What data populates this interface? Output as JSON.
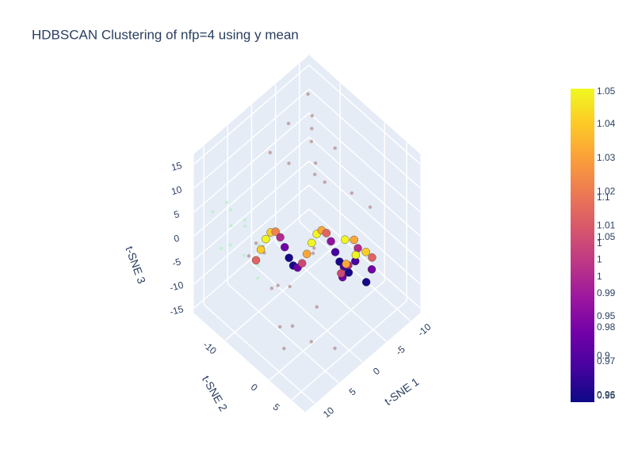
{
  "chart_data": {
    "type": "scatter3d",
    "title": "HDBSCAN Clustering of nfp=4 using y mean",
    "xaxis_title": "t-SNE 1",
    "yaxis_title": "t-SNE 2",
    "zaxis_title": "t-SNE 3",
    "xlim": [
      -12,
      12
    ],
    "ylim": [
      -17,
      8
    ],
    "zlim": [
      -16,
      17
    ],
    "xticks": [
      -10,
      -5,
      0,
      5,
      10
    ],
    "yticks": [
      -10,
      0,
      5
    ],
    "zticks": [
      -15,
      -10,
      -5,
      0,
      5,
      10,
      15
    ],
    "grid": true,
    "colorscale": [
      "#0d0887",
      "#46039f",
      "#7201a8",
      "#9c179e",
      "#bd3786",
      "#d8576b",
      "#ed7953",
      "#fb9f3a",
      "#fdca26",
      "#f0f921"
    ],
    "colorbars": [
      {
        "lim": [
          0.948,
          1.051
        ],
        "ticks": [
          0.95,
          1,
          1.05
        ]
      },
      {
        "lim": [
          0.958,
          1.0505
        ],
        "ticks": [
          0.96,
          0.97,
          0.98,
          0.99,
          1,
          1.01,
          1.02,
          1.03,
          1.04
        ]
      },
      {
        "lim": [
          0.842,
          1.238
        ],
        "ticks": [
          0.9,
          0.95,
          1,
          1.05,
          1.1
        ]
      }
    ],
    "series": [
      {
        "color": "#a87878",
        "opacity": 0.6,
        "size": 2.2,
        "x": [
          -8,
          -6,
          -9,
          -5,
          -7,
          -3,
          -10,
          -4,
          -6,
          -2,
          3,
          5,
          2,
          8,
          6,
          9,
          4,
          -1,
          7,
          10,
          1,
          -7,
          -9,
          0,
          6,
          3,
          -5,
          8,
          2,
          -3
        ],
        "y": [
          -12,
          -10,
          -14,
          -8,
          -11,
          -6,
          -9,
          -13,
          -7,
          -15,
          -5,
          -3,
          -12,
          -2,
          -8,
          0,
          2,
          -4,
          4,
          3,
          -10,
          -2,
          0,
          -16,
          -6,
          5,
          -14,
          -9,
          -1,
          1
        ],
        "z": [
          12,
          10,
          14,
          8,
          11,
          9,
          6,
          13,
          4,
          7,
          -2,
          -5,
          -8,
          -10,
          0,
          -12,
          -6,
          -3,
          -9,
          -4,
          -14,
          5,
          2,
          -11,
          -7,
          -13,
          3,
          -1,
          1,
          -6
        ]
      },
      {
        "color": "#b8f0c8",
        "opacity": 0.7,
        "size": 2.2,
        "x": [
          8,
          9,
          10,
          7,
          8,
          11,
          6,
          9,
          10,
          7,
          5,
          8
        ],
        "y": [
          -14,
          -12,
          -15,
          -11,
          -13,
          -10,
          -12,
          -9,
          -13,
          -8,
          -10,
          -7
        ],
        "z": [
          6,
          7,
          5,
          4,
          2,
          3,
          1,
          0,
          -1,
          -3,
          -2,
          -4
        ]
      },
      {
        "opacity": 1,
        "size": 5,
        "x": [
          11.58,
          10.51,
          9.05,
          7.54,
          6.33,
          5.67,
          5.61,
          6.0,
          6.53,
          6.84,
          6.65,
          5.84,
          4.53,
          3.0,
          1.61,
          0.67,
          0.33,
          0.54,
          1.05,
          1.51,
          1.58
        ],
        "y": [
          -3.52,
          -3.59,
          -4.05,
          -4.56,
          -4.77,
          -4.43,
          -3.49,
          -2.1,
          -0.57,
          0.74,
          1.55,
          1.74,
          1.43,
          0.9,
          0.51,
          0.57,
          1.23,
          2.44,
          3.95,
          5.41,
          6.48
        ],
        "z": [
          5.7,
          6.93,
          7.49,
          7.18,
          6.11,
          4.65,
          3.31,
          2.57,
          2.67,
          3.59,
          5.0,
          6.41,
          7.33,
          7.44,
          6.69,
          5.35,
          3.89,
          2.82,
          2.51,
          3.07,
          4.3
        ],
        "color_values": [
          1.01,
          1.04,
          1.05,
          1.04,
          1.02,
          0.99,
          0.97,
          0.95,
          0.95,
          0.97,
          1,
          1.03,
          1.05,
          1.05,
          1.03,
          1.01,
          0.98,
          0.96,
          0.95,
          0.96,
          0.99
        ]
      },
      {
        "opacity": 1,
        "size": 5,
        "x": [
          -1.33,
          -2.85,
          -3.28,
          -2.37,
          -0.62,
          1.03,
          1.7,
          1.03,
          -0.62,
          -2.37,
          -3.28,
          -2.85,
          -1.33
        ],
        "y": [
          2.6,
          3.0,
          3.4,
          3.8,
          4.2,
          4.6,
          5.0,
          5.4,
          5.8,
          6.2,
          6.6,
          7.0,
          7.4
        ],
        "z": [
          3.95,
          2.93,
          1.15,
          -0.45,
          -0.99,
          -0.21,
          1.5,
          3.21,
          3.99,
          3.45,
          1.85,
          0.07,
          -0.95
        ],
        "color_values": [
          1.05,
          1.03,
          0.99,
          0.96,
          0.95,
          0.97,
          1,
          1.03,
          1.05,
          1.04,
          1.01,
          0.97,
          0.95
        ]
      }
    ]
  }
}
